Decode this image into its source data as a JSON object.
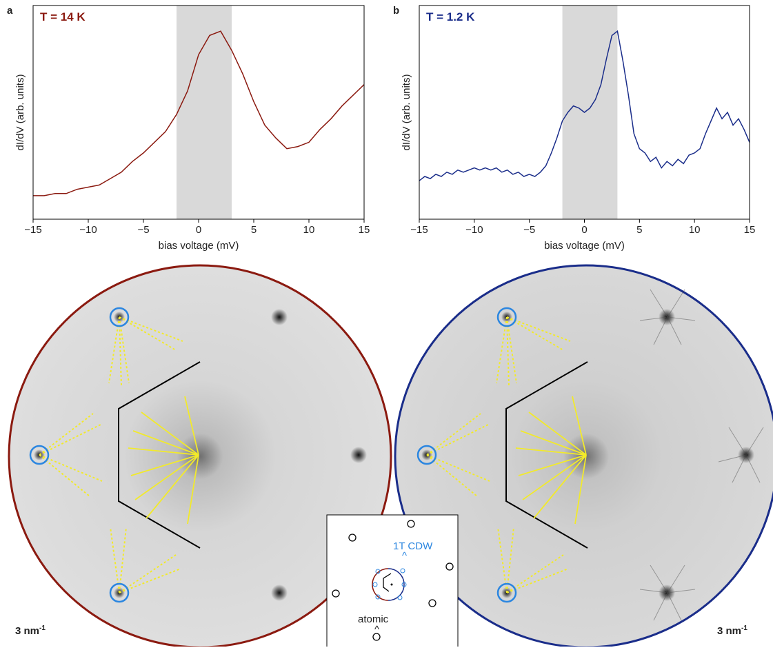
{
  "chart_data": [
    {
      "type": "line",
      "panel": "a",
      "title": "T = 14 K",
      "color": "#8b1a10",
      "x_label": "bias voltage (mV)",
      "y_label": "dI/dV (arb. units)",
      "xlim": [
        -15,
        15
      ],
      "ylim": [
        0,
        1
      ],
      "xticks": [
        {
          "value": -15,
          "label": "−15"
        },
        {
          "value": -10,
          "label": "−10"
        },
        {
          "value": -5,
          "label": "−5"
        },
        0,
        5,
        10,
        15
      ],
      "highlight": [
        -2,
        3
      ],
      "highlight_color": "#d9d9d9",
      "x": [
        -15,
        -14,
        -13,
        -12,
        -11,
        -10,
        -9,
        -8,
        -7,
        -6,
        -5,
        -4,
        -3,
        -2,
        -1,
        0,
        1,
        2,
        3,
        4,
        5,
        6,
        7,
        8,
        9,
        10,
        11,
        12,
        13,
        14,
        15
      ],
      "values": [
        0.11,
        0.11,
        0.12,
        0.12,
        0.14,
        0.15,
        0.16,
        0.19,
        0.22,
        0.27,
        0.31,
        0.36,
        0.41,
        0.49,
        0.6,
        0.77,
        0.86,
        0.88,
        0.79,
        0.68,
        0.55,
        0.44,
        0.38,
        0.33,
        0.34,
        0.36,
        0.42,
        0.47,
        0.53,
        0.58,
        0.63
      ]
    },
    {
      "type": "line",
      "panel": "b",
      "title": "T = 1.2 K",
      "color": "#1a2d8a",
      "x_label": "bias voltage (mV)",
      "y_label": "dI/dV (arb. units)",
      "xlim": [
        -15,
        15
      ],
      "ylim": [
        0,
        1
      ],
      "xticks": [
        {
          "value": -15,
          "label": "−15"
        },
        {
          "value": -10,
          "label": "−10"
        },
        {
          "value": -5,
          "label": "−5"
        },
        0,
        5,
        10,
        15
      ],
      "highlight": [
        -2,
        3
      ],
      "highlight_color": "#d9d9d9",
      "x": [
        -15,
        -14.5,
        -14,
        -13.5,
        -13,
        -12.5,
        -12,
        -11.5,
        -11,
        -10.5,
        -10,
        -9.5,
        -9,
        -8.5,
        -8,
        -7.5,
        -7,
        -6.5,
        -6,
        -5.5,
        -5,
        -4.5,
        -4,
        -3.5,
        -3,
        -2.5,
        -2,
        -1.5,
        -1,
        -0.5,
        0,
        0.5,
        1,
        1.5,
        2,
        2.5,
        3,
        3.5,
        4,
        4.5,
        5,
        5.5,
        6,
        6.5,
        7,
        7.5,
        8,
        8.5,
        9,
        9.5,
        10,
        10.5,
        11,
        11.5,
        12,
        12.5,
        13,
        13.5,
        14,
        14.5,
        15
      ],
      "values": [
        0.18,
        0.2,
        0.19,
        0.21,
        0.2,
        0.22,
        0.21,
        0.23,
        0.22,
        0.23,
        0.24,
        0.23,
        0.24,
        0.23,
        0.24,
        0.22,
        0.23,
        0.21,
        0.22,
        0.2,
        0.21,
        0.2,
        0.22,
        0.25,
        0.31,
        0.38,
        0.46,
        0.5,
        0.53,
        0.52,
        0.5,
        0.52,
        0.56,
        0.63,
        0.75,
        0.86,
        0.88,
        0.74,
        0.58,
        0.4,
        0.33,
        0.31,
        0.27,
        0.29,
        0.24,
        0.27,
        0.25,
        0.28,
        0.26,
        0.3,
        0.31,
        0.33,
        0.4,
        0.46,
        0.52,
        0.47,
        0.5,
        0.44,
        0.47,
        0.42,
        0.36
      ]
    }
  ],
  "images": {
    "scale_left": "3 nm",
    "scale_right": "3 nm",
    "scale_unit_exp": "-1",
    "inset": {
      "cdw_label": "1T CDW",
      "atomic_label": "atomic"
    }
  }
}
